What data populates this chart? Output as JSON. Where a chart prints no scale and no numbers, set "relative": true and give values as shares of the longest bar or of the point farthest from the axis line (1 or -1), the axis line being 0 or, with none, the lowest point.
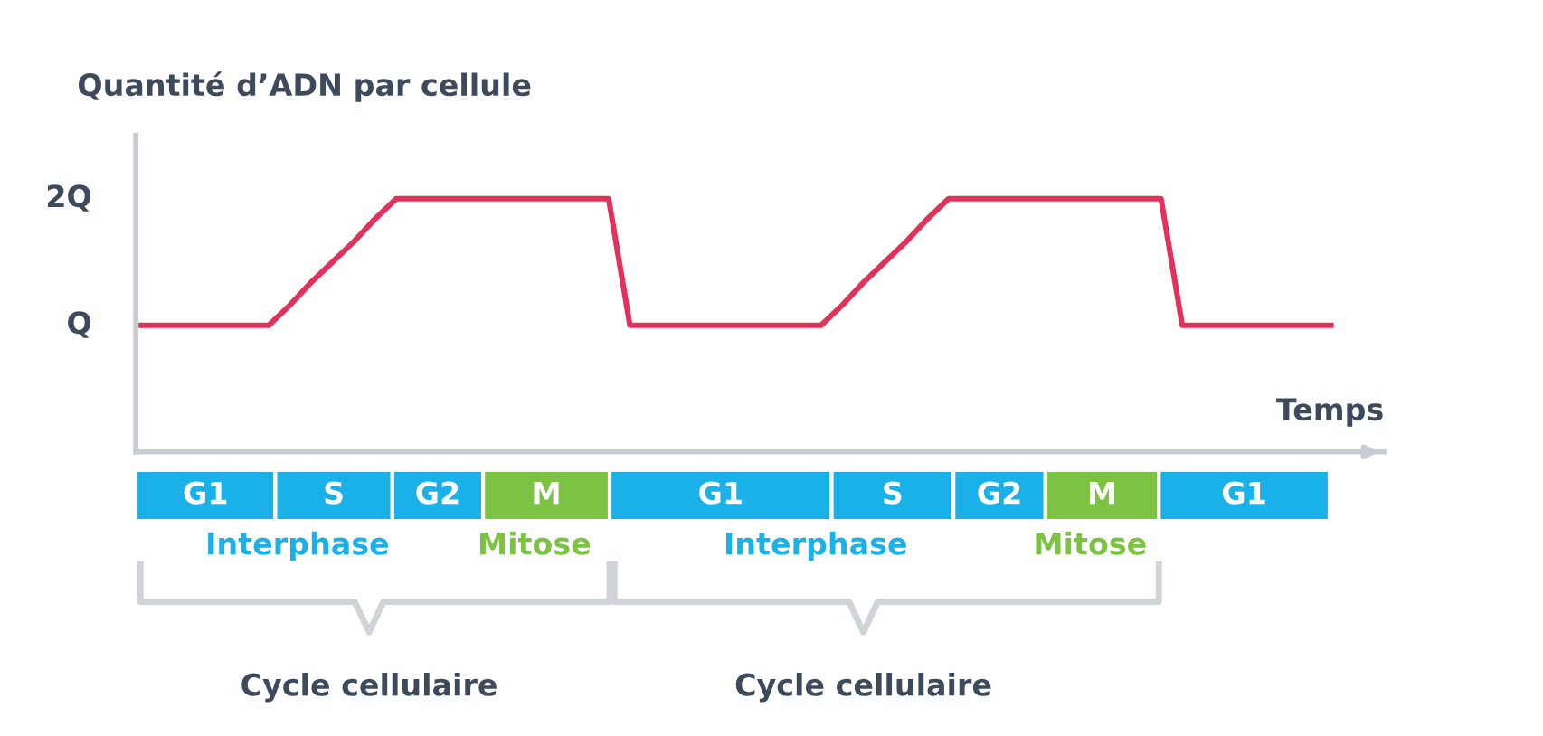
{
  "chart_data": [
    {
      "type": "line",
      "ylabel": "Quantité d’ADN par cellule",
      "xlabel": "Temps",
      "categories": [
        null,
        null,
        null,
        null,
        null,
        null,
        null,
        null,
        null,
        null,
        null,
        null,
        null,
        null,
        null,
        null,
        null,
        null,
        null,
        null,
        null,
        null,
        null,
        null,
        null,
        null,
        null,
        null,
        null,
        null,
        null,
        null,
        null,
        null,
        null,
        null,
        null,
        null,
        null,
        null,
        null,
        null,
        null,
        null,
        null,
        null,
        null,
        null,
        null,
        null,
        null,
        null,
        null,
        null,
        null,
        null,
        null
      ],
      "series": [
        {
          "color": "#e0325a",
          "values": [
            0.5,
            0.5,
            0.5,
            0.5,
            0.5,
            0.5,
            0.5,
            0.58,
            0.67,
            0.75,
            0.83,
            0.92,
            1,
            1,
            1,
            1,
            1,
            1,
            1,
            1,
            1,
            1,
            1,
            0.5,
            0.5,
            0.5,
            0.5,
            0.5,
            0.5,
            0.5,
            0.5,
            0.5,
            0.5,
            0.58,
            0.67,
            0.75,
            0.83,
            0.92,
            1,
            1,
            1,
            1,
            1,
            1,
            1,
            1,
            1,
            1,
            1,
            0.5,
            0.5,
            0.5,
            0.5,
            0.5,
            0.5,
            0.5,
            0.5
          ]
        }
      ],
      "relative": true,
      "annotations": [
        "2Q",
        "Q"
      ],
      "grid": false,
      "legend": false,
      "marker": "none",
      "line_style": "solid"
    },
    {
      "type": "bar",
      "orientation": "horizontal",
      "stacked": true,
      "relative": true,
      "categories": [
        null
      ],
      "legend": false,
      "grid": false,
      "series": [
        {
          "name": "G1",
          "color": "#1ab0e8",
          "values": [
            0.117
          ]
        },
        {
          "name": "S",
          "color": "#1ab0e8",
          "values": [
            0.098
          ]
        },
        {
          "name": "G2",
          "color": "#1ab0e8",
          "values": [
            0.076
          ]
        },
        {
          "name": "M",
          "color": "#7cc243",
          "values": [
            0.106
          ]
        },
        {
          "name": "G1",
          "color": "#1ab0e8",
          "values": [
            0.186
          ]
        },
        {
          "name": "S",
          "color": "#1ab0e8",
          "values": [
            0.102
          ]
        },
        {
          "name": "G2",
          "color": "#1ab0e8",
          "values": [
            0.077
          ]
        },
        {
          "name": "M",
          "color": "#7cc243",
          "values": [
            0.095
          ]
        },
        {
          "name": "G1",
          "color": "#1ab0e8",
          "values": [
            0.143
          ]
        }
      ],
      "annotations": [
        "Interphase",
        "Mitose",
        "Interphase",
        "Mitose",
        "Cycle cellulaire",
        "Cycle cellulaire"
      ]
    }
  ]
}
